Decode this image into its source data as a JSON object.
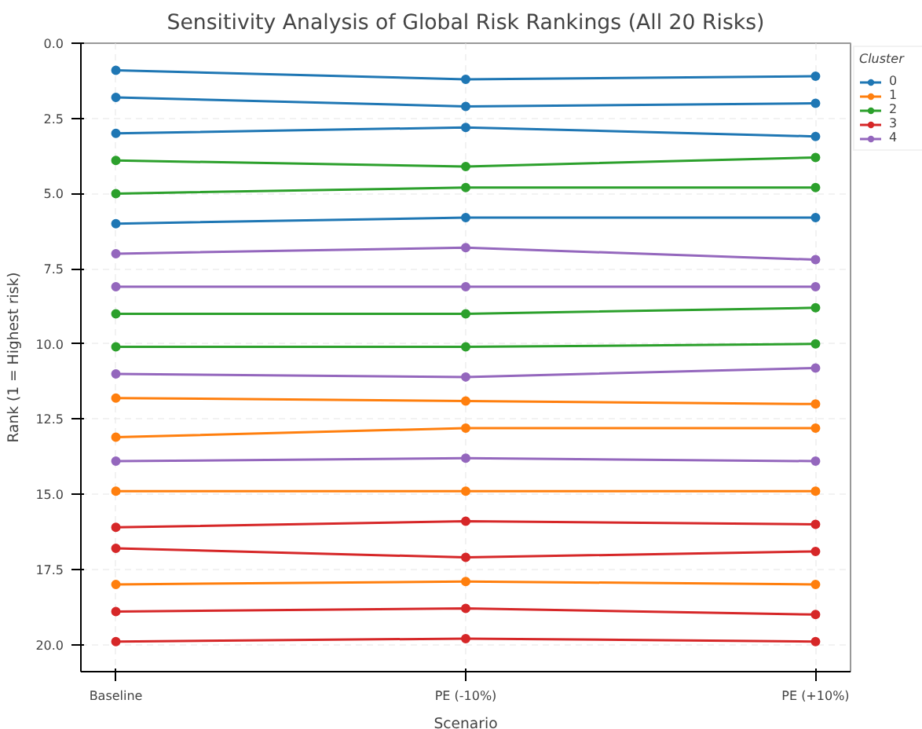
{
  "chart_data": {
    "type": "line",
    "title": "Sensitivity Analysis of Global Risk Rankings (All 20 Risks)",
    "xlabel": "Scenario",
    "ylabel": "Rank (1 = Highest risk)",
    "legend_title": "Cluster",
    "categories": [
      "Baseline",
      "PE (-10%)",
      "PE (+10%)"
    ],
    "ylim": [
      20.9,
      0.0
    ],
    "yticks": [
      {
        "value": 0,
        "label": "0.0"
      },
      2.5,
      {
        "value": 5,
        "label": "5.0"
      },
      7.5,
      {
        "value": 10,
        "label": "10.0"
      },
      12.5,
      {
        "value": 15,
        "label": "15.0"
      },
      17.5,
      {
        "value": 20,
        "label": "20.0"
      }
    ],
    "grid": true,
    "legend": "top right",
    "marker": "circle",
    "line_style": "solid",
    "series": [
      {
        "name": "0",
        "color": "#1f77b4",
        "values": [
          0.9,
          1.2,
          1.1
        ]
      },
      {
        "color": "#1f77b4",
        "values": [
          1.8,
          2.1,
          2.0
        ]
      },
      {
        "color": "#1f77b4",
        "values": [
          3.0,
          2.8,
          3.1
        ]
      },
      {
        "color": "#1f77b4",
        "values": [
          6.0,
          5.8,
          5.8
        ]
      },
      {
        "name": "1",
        "color": "#ff7f0e",
        "values": [
          11.8,
          11.9,
          12.0
        ]
      },
      {
        "color": "#ff7f0e",
        "values": [
          13.1,
          12.8,
          12.8
        ]
      },
      {
        "color": "#ff7f0e",
        "values": [
          14.9,
          14.9,
          14.9
        ]
      },
      {
        "color": "#ff7f0e",
        "values": [
          18.0,
          17.9,
          18.0
        ]
      },
      {
        "name": "2",
        "color": "#2ca02c",
        "values": [
          3.9,
          4.1,
          3.8
        ]
      },
      {
        "color": "#2ca02c",
        "values": [
          5.0,
          4.8,
          4.8
        ]
      },
      {
        "color": "#2ca02c",
        "values": [
          9.0,
          9.0,
          8.8
        ]
      },
      {
        "color": "#2ca02c",
        "values": [
          10.1,
          10.1,
          10.0
        ]
      },
      {
        "name": "3",
        "color": "#d62728",
        "values": [
          16.1,
          15.9,
          16.0
        ]
      },
      {
        "color": "#d62728",
        "values": [
          16.8,
          17.1,
          16.9
        ]
      },
      {
        "color": "#d62728",
        "values": [
          18.9,
          18.8,
          19.0
        ]
      },
      {
        "color": "#d62728",
        "values": [
          19.9,
          19.8,
          19.9
        ]
      },
      {
        "name": "4",
        "color": "#9467bd",
        "values": [
          7.0,
          6.8,
          7.2
        ]
      },
      {
        "color": "#9467bd",
        "values": [
          8.1,
          8.1,
          8.1
        ]
      },
      {
        "color": "#9467bd",
        "values": [
          11.0,
          11.1,
          10.8
        ]
      },
      {
        "color": "#9467bd",
        "values": [
          13.9,
          13.8,
          13.9
        ]
      }
    ]
  }
}
